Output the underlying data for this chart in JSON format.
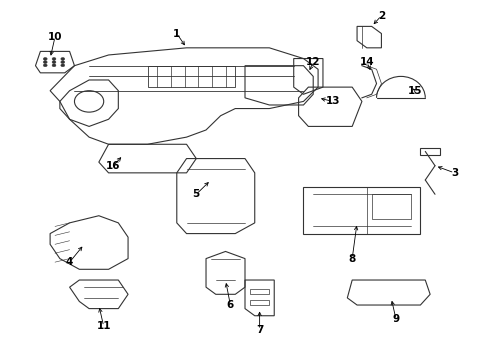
{
  "background_color": "#ffffff",
  "line_color": "#333333",
  "label_color": "#000000",
  "fig_width": 4.9,
  "fig_height": 3.6,
  "dpi": 100
}
